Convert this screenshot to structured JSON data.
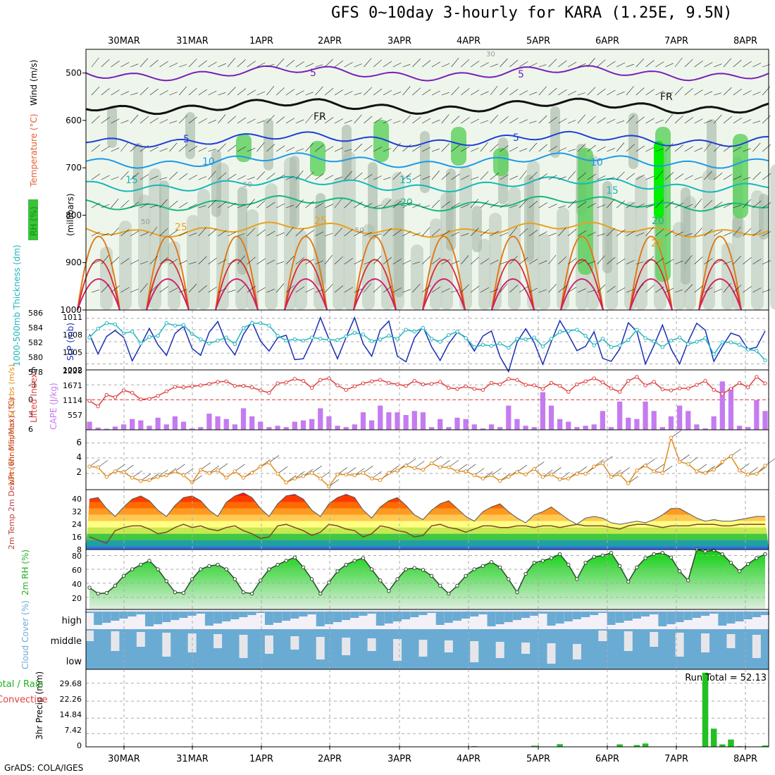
{
  "title": "GFS 0~10day 3-hourly for KARA (1.25E, 9.5N)",
  "credit": "GrADS: COLA/IGES",
  "chart_data": [
    {
      "panel": "upper-air",
      "type": "heatmap",
      "dates": [
        "30MAR",
        "31MAR",
        "1APR",
        "2APR",
        "3APR",
        "4APR",
        "5APR",
        "6APR",
        "7APR",
        "8APR"
      ],
      "ylabel_parts": [
        "RH (%)",
        "Temperature (°C)",
        "Wind (m/s)"
      ],
      "ylabel_right": "(millibars)",
      "y_ticks": [
        500,
        600,
        700,
        800,
        900,
        1000
      ],
      "ylim": [
        1000,
        450
      ],
      "contour_labels": [
        "5",
        "5",
        "FR",
        "FR",
        "5",
        "5",
        "10",
        "10",
        "15",
        "15",
        "15",
        "20",
        "20",
        "25",
        "25",
        "25",
        "50",
        "50",
        "30",
        "50"
      ],
      "isotherms": [
        {
          "label": "-5",
          "color": "#7a1fb8",
          "level_mb": 500
        },
        {
          "label": "0 (FR)",
          "color": "#111111",
          "level_mb": 570
        },
        {
          "label": "5",
          "color": "#1f3fd6",
          "level_mb": 640
        },
        {
          "label": "10",
          "color": "#1e9ae6",
          "level_mb": 685
        },
        {
          "label": "15",
          "color": "#16b8b8",
          "level_mb": 735
        },
        {
          "label": "20",
          "color": "#18b87a",
          "level_mb": 775
        },
        {
          "label": "25",
          "color": "#e6a020",
          "level_mb": 830
        }
      ]
    },
    {
      "panel": "thickness-slp",
      "type": "line",
      "ylabel_left": "1000-500mb Thickness (dm)",
      "ylabel_right": "SLP (mb)",
      "left_ticks": [
        "586",
        "584",
        "582",
        "580",
        "578"
      ],
      "right_ticks": [
        "1011",
        "1008",
        "1005",
        "1002"
      ],
      "series": [
        {
          "name": "SLP (mb)",
          "color": "#1a2fb5",
          "values": [
            1007.3,
            1002.7,
            1006.8,
            1008.2,
            1006.6,
            1001.1,
            1004.8,
            1008.7,
            1004.9,
            1002.4,
            1007.5,
            1009.2,
            1004.0,
            1002.4,
            1007.8,
            1010.3,
            1005.2,
            1002.5,
            1007.3,
            1010.3,
            1005.7,
            1003.4,
            1006.5,
            1007.1,
            1001.4,
            1001.6,
            1005.8,
            1011.2,
            1006.2,
            1001.6,
            1006.6,
            1011.2,
            1005.1,
            1002.2,
            1008.3,
            1010.4,
            1002.2,
            1000.9,
            1006.5,
            1009.1,
            1004.4,
            1001.2,
            1005.1,
            1007.8,
            1006.6,
            1003.4,
            1006.9,
            1008.1,
            1002.1,
            998.6,
            1005.5,
            1008.6,
            1005.4,
            1000.3,
            1005.6,
            1010.5,
            1007.2,
            1003.5,
            1004.5,
            1007.9,
            1001.7,
            1001.0,
            1003.9,
            1010.0,
            1008.0,
            1000.4,
            1004.7,
            1009.5,
            1003.9,
            1000.4,
            1005.6,
            1009.9,
            1008.3,
            1001.0,
            1004.5,
            1007.6,
            1006.9,
            1003.8,
            1004.3,
            1008.1
          ]
        },
        {
          "name": "1000-500mb Thickness (dm)",
          "color": "#1fb5c0",
          "values": [
            582.4,
            583.9,
            584.8,
            584.6,
            583.1,
            583.4,
            581.4,
            582.5,
            582.7,
            584.8,
            584.4,
            584.5,
            583.0,
            582.1,
            581.4,
            581.9,
            582.4,
            581.3,
            584.0,
            584.8,
            584.8,
            584.4,
            582.7,
            581.9,
            582.1,
            581.9,
            582.4,
            582.2,
            582.0,
            582.0,
            582.6,
            583.2,
            582.9,
            581.8,
            582.1,
            582.7,
            582.2,
            583.7,
            583.4,
            584.0,
            582.2,
            581.7,
            582.8,
            583.4,
            582.3,
            580.8,
            581.2,
            581.0,
            581.4,
            580.7,
            582.2,
            582.1,
            582.4,
            580.9,
            582.2,
            583.3,
            583.5,
            583.7,
            582.7,
            581.1,
            582.2,
            580.8,
            581.1,
            582.0,
            583.7,
            582.3,
            581.8,
            580.8,
            581.9,
            582.4,
            581.3,
            581.7,
            582.3,
            579.6,
            581.6,
            581.6,
            581.2,
            580.4,
            580.2,
            578.6
          ]
        }
      ]
    },
    {
      "panel": "cape-li",
      "type": "bar",
      "ylabel_left": "Lifted Index",
      "ylabel_right": "CAPE (J/kg)",
      "li_ticks": [
        "-6",
        "-3",
        "0",
        "3",
        "6"
      ],
      "cape_ticks": [
        "2228",
        "1671",
        "1114",
        "557"
      ],
      "series": [
        {
          "name": "CAPE (J/kg)",
          "color": "#c57bf0",
          "values": [
            300,
            80,
            40,
            120,
            200,
            400,
            350,
            150,
            450,
            200,
            500,
            300,
            50,
            100,
            600,
            500,
            400,
            200,
            800,
            500,
            300,
            100,
            150,
            100,
            300,
            350,
            400,
            800,
            500,
            150,
            100,
            200,
            650,
            350,
            900,
            650,
            650,
            550,
            700,
            650,
            100,
            400,
            100,
            450,
            400,
            200,
            50,
            200,
            100,
            900,
            400,
            150,
            100,
            1400,
            900,
            400,
            300,
            100,
            150,
            200,
            700,
            100,
            1050,
            450,
            400,
            1050,
            700,
            100,
            500,
            900,
            700,
            200,
            50,
            500,
            1800,
            1550,
            150,
            100,
            1100,
            700
          ]
        },
        {
          "name": "Lifted Index",
          "color": "#e04040",
          "values": [
            0.2,
            1.3,
            -1,
            -0.5,
            -1.9,
            -1.4,
            -0.1,
            -0.2,
            -0.8,
            -1.7,
            -2.6,
            -2.5,
            -2.7,
            -2.9,
            -3.2,
            -3.6,
            -3.7,
            -2.8,
            -2.8,
            -2.5,
            -1.9,
            -1.4,
            -3.3,
            -3.5,
            -4.2,
            -3.8,
            -2.4,
            -4.0,
            -4.3,
            -2.9,
            -2.0,
            -2.7,
            -3.3,
            -3.7,
            -4.0,
            -3.4,
            -3.1,
            -2.8,
            -3.8,
            -3.1,
            -3.2,
            -3.6,
            -2.4,
            -2.2,
            -2.7,
            -2.2,
            -2.0,
            -3.4,
            -3.1,
            -4.2,
            -4.0,
            -3.0,
            -2.9,
            -2.2,
            -3.4,
            -2.8,
            -1.6,
            -3.1,
            -3.7,
            -4.3,
            -3.5,
            -2.3,
            -1.6,
            -3.8,
            -4.6,
            -2.9,
            -3.6,
            -2.1,
            -1.9,
            -2.3,
            -2.3,
            -3.0,
            -3.8,
            -2.0,
            -1.2,
            -2.2,
            -3.4,
            -2.5,
            -4.6,
            -3.3
          ]
        }
      ]
    },
    {
      "panel": "wind10m",
      "type": "line",
      "ylabel": "10m Wind Speed & Barbs (m/s)",
      "y_ticks": [
        "6",
        "4",
        "2"
      ],
      "series": [
        {
          "name": "10m Wind Speed",
          "color": "#e08b1a",
          "values": [
            3.4,
            3.3,
            2.1,
            2.8,
            2.7,
            2.0,
            1.6,
            1.7,
            2.1,
            2.3,
            2.8,
            2.3,
            1.4,
            3.0,
            2.6,
            2.9,
            2.0,
            2.8,
            2.0,
            2.6,
            3.4,
            3.9,
            2.5,
            1.4,
            1.9,
            2.2,
            2.6,
            1.9,
            0.9,
            2.4,
            2.4,
            2.3,
            2.6,
            1.9,
            1.7,
            2.6,
            2.9,
            3.5,
            3.2,
            3.0,
            3.8,
            3.3,
            3.3,
            2.8,
            2.8,
            2.3,
            1.9,
            2.3,
            1.6,
            2.1,
            2.7,
            2.4,
            3.1,
            2.1,
            2.4,
            1.8,
            1.9,
            2.5,
            2.5,
            3.4,
            3.8,
            2.1,
            2.4,
            1.3,
            2.9,
            3.5,
            2.8,
            2.6,
            7.0,
            4.0,
            3.7,
            2.8,
            2.6,
            3.0,
            4.0,
            4.7,
            2.9,
            2.4,
            2.5,
            3.5
          ]
        }
      ]
    },
    {
      "panel": "temp2m",
      "type": "area",
      "ylabel": "2m Temp 2m DewPt (6hr Min/Max) (°C)",
      "y_ticks": [
        "40",
        "32",
        "24",
        "16",
        "8"
      ],
      "series": [
        {
          "name": "2m Temp",
          "values": [
            38,
            39,
            32,
            27,
            33,
            38,
            40,
            37,
            31,
            27,
            34,
            39,
            40,
            37,
            31,
            27,
            36,
            40,
            42,
            39,
            32,
            27,
            35,
            40,
            41,
            38,
            31,
            27,
            35,
            39,
            41,
            39,
            31,
            26,
            33,
            37,
            39,
            34,
            28,
            25,
            31,
            35,
            37,
            32,
            27,
            24,
            30,
            33,
            35,
            30,
            26,
            23,
            28,
            30,
            33,
            29,
            25,
            22,
            26,
            27,
            26,
            23,
            22,
            23,
            24,
            23,
            25,
            28,
            32,
            32,
            29,
            26,
            24,
            25,
            24,
            24,
            25,
            26,
            27,
            27
          ]
        },
        {
          "name": "2m DewPt",
          "color": "#7a4a2a",
          "values": [
            14,
            12,
            10,
            18,
            20,
            21,
            21,
            19,
            16,
            17,
            20,
            22,
            20,
            21,
            19,
            18,
            20,
            21,
            18,
            16,
            13,
            14,
            21,
            22,
            20,
            18,
            15,
            17,
            22,
            21,
            19,
            18,
            14,
            16,
            21,
            20,
            18,
            17,
            14,
            15,
            21,
            22,
            20,
            19,
            17,
            19,
            21,
            21,
            20,
            20,
            21,
            21,
            20,
            21,
            21,
            20,
            21,
            22,
            21,
            21,
            21,
            20,
            19,
            21,
            22,
            22,
            21,
            20,
            21,
            21,
            21,
            22,
            22,
            22,
            21,
            21,
            22,
            22,
            22,
            22
          ]
        }
      ]
    },
    {
      "panel": "rh2m",
      "type": "area",
      "ylabel": "2m RH (%)",
      "y_ticks": [
        "80",
        "60",
        "40",
        "20"
      ],
      "series": [
        {
          "name": "2m RH",
          "color": "#1fd01f",
          "values": [
            27,
            18,
            19,
            30,
            45,
            55,
            62,
            68,
            55,
            37,
            20,
            19,
            40,
            55,
            60,
            62,
            55,
            40,
            20,
            18,
            38,
            55,
            62,
            68,
            73,
            58,
            40,
            18,
            35,
            52,
            62,
            68,
            72,
            55,
            38,
            22,
            40,
            55,
            57,
            54,
            45,
            30,
            18,
            30,
            45,
            55,
            60,
            66,
            58,
            40,
            20,
            48,
            65,
            68,
            72,
            78,
            62,
            40,
            65,
            74,
            76,
            80,
            60,
            36,
            58,
            72,
            78,
            80,
            73,
            52,
            38,
            85,
            82,
            84,
            78,
            65,
            52,
            63,
            72,
            78
          ]
        }
      ]
    },
    {
      "panel": "cloud",
      "type": "heatmap",
      "ylabel": "Cloud Cover (%)",
      "rows": [
        "high",
        "middle",
        "low"
      ]
    },
    {
      "panel": "precip",
      "type": "bar",
      "ylabel": "3hr Precip (mm)",
      "ylabel_left": "Total / Rain Convective",
      "y_ticks": [
        "29.68",
        "22.26",
        "14.84",
        "7.42",
        "0"
      ],
      "run_total_label": "Run Total = 52.13",
      "series": [
        {
          "name": "3hr Precip",
          "color": "#22c022",
          "values": [
            0,
            0,
            0,
            0,
            0,
            0,
            0,
            0,
            0,
            0,
            0,
            0,
            0,
            0,
            0,
            0,
            0,
            0,
            0,
            0,
            0,
            0,
            0,
            0,
            0,
            0,
            0,
            0,
            0,
            0,
            0,
            0,
            0,
            0,
            0,
            0,
            0,
            0,
            0,
            0,
            0,
            0,
            0,
            0,
            0,
            0.3,
            0,
            0,
            0,
            0,
            0,
            0,
            0.5,
            0,
            0,
            1.2,
            0,
            0,
            0,
            0,
            0,
            0,
            1.1,
            0,
            0.8,
            1.5,
            0,
            0,
            0,
            0,
            0,
            0,
            33.5,
            8.2,
            1.1,
            3.3,
            0.3,
            0,
            0,
            0.6
          ]
        }
      ]
    }
  ],
  "colors": {
    "rh_light": "#eef6ec",
    "rh_mid": "#c7d3c7",
    "rh_dark": "#a4b5a4",
    "rh_green": "#5ad05a",
    "rh_bright": "#00f000",
    "cloud": "#6aabd4",
    "cloud_bg": "#f3f0f8"
  }
}
